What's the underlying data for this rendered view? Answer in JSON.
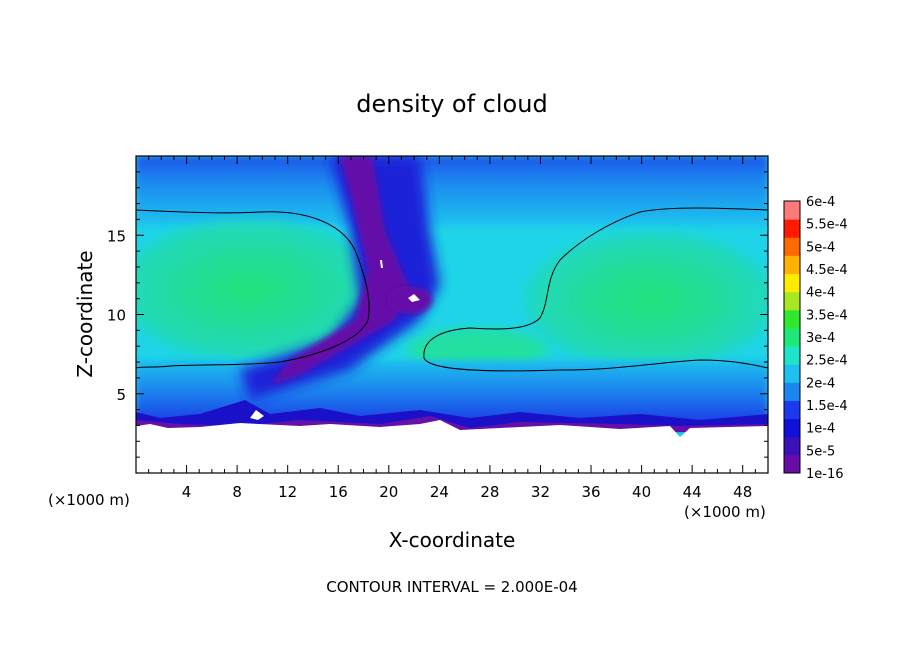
{
  "chart_data": {
    "type": "heatmap",
    "title": "density of cloud",
    "xlabel": "X-coordinate",
    "ylabel": "Z-coordinate",
    "x_unit": "(×1000 m)",
    "y_unit": "(×1000 m)",
    "xlim": [
      0,
      50
    ],
    "ylim": [
      0,
      20
    ],
    "x_ticks": [
      4,
      8,
      12,
      16,
      20,
      24,
      28,
      32,
      36,
      40,
      44,
      48
    ],
    "y_ticks": [
      5,
      10,
      15
    ],
    "colorbar": {
      "labels": [
        "6e-4",
        "5.5e-4",
        "5e-4",
        "4.5e-4",
        "4e-4",
        "3.5e-4",
        "3e-4",
        "2.5e-4",
        "2e-4",
        "1.5e-4",
        "1e-4",
        "5e-5",
        "1e-16"
      ],
      "colors": [
        "#6a0da8",
        "#3a11b8",
        "#1010d8",
        "#1a3af0",
        "#1c86f0",
        "#1ec0f0",
        "#1ee4c8",
        "#1ee878",
        "#30e830",
        "#a8e820",
        "#ffea00",
        "#ffb000",
        "#ff6a00",
        "#ff1a00",
        "#ff7a7a"
      ]
    },
    "footer": "CONTOUR INTERVAL = 2.000E-04",
    "contour_level": "2.000E-04",
    "grid": false
  }
}
